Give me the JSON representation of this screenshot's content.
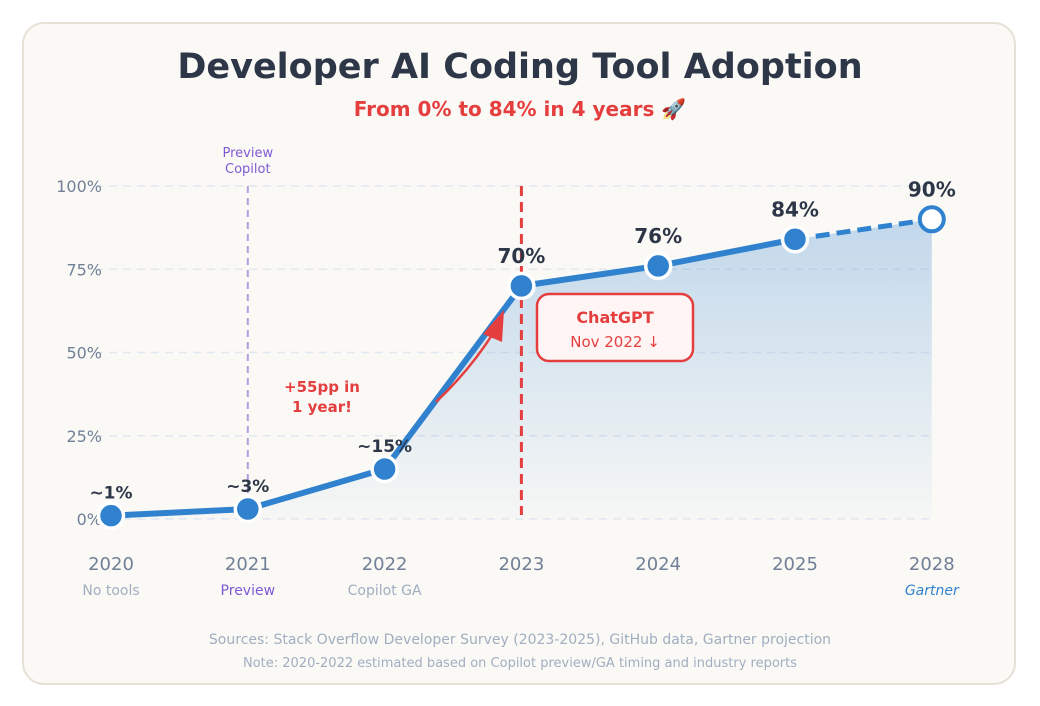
{
  "chart_data": {
    "type": "line",
    "title": "Developer AI Coding Tool Adoption",
    "subtitle": "From 0% to 84% in 4 years 🚀",
    "categories": [
      "2020",
      "2021",
      "2022",
      "2023",
      "2024",
      "2025",
      "2028"
    ],
    "sublabels": [
      "No tools",
      "Preview",
      "Copilot GA",
      "",
      "",
      "",
      "Gartner"
    ],
    "values": [
      1,
      3,
      15,
      70,
      76,
      84,
      90
    ],
    "value_labels": [
      "~1%",
      "~3%",
      "~15%",
      "70%",
      "76%",
      "84%",
      "90%"
    ],
    "projected_from_index": 5,
    "ylim": [
      0,
      100
    ],
    "yticks": [
      0,
      25,
      50,
      75,
      100
    ],
    "ytick_labels": [
      "0%",
      "25%",
      "50%",
      "75%",
      "100%"
    ],
    "grid": true,
    "annotations": {
      "preview_copilot": {
        "line1": "Preview",
        "line2": "Copilot",
        "at": "2021"
      },
      "chatgpt": {
        "title": "ChatGPT",
        "sub": "Nov 2022 ↓",
        "at": "2023"
      },
      "growth": {
        "line1": "+55pp in",
        "line2": "1 year!"
      }
    },
    "colors": {
      "line": "#3182ce",
      "accent": "#e53e3e",
      "purple": "#805ad5",
      "title": "#2d3748",
      "axis": "#718096"
    }
  },
  "footer": {
    "sources": "Sources: Stack Overflow Developer Survey (2023-2025), GitHub data, Gartner projection",
    "note": "Note: 2020-2022 estimated based on Copilot preview/GA timing and industry reports"
  }
}
